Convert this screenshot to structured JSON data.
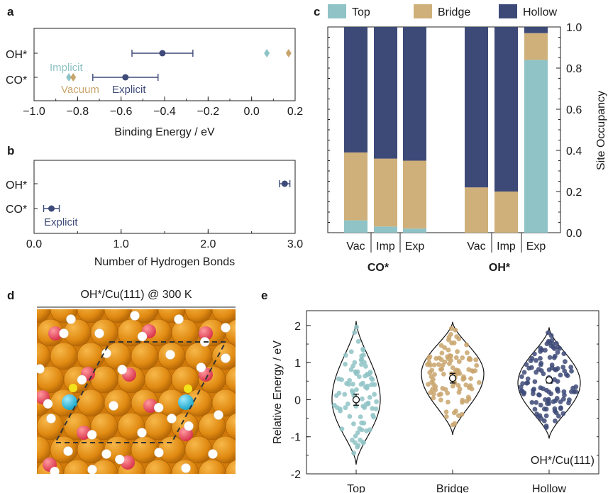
{
  "colors": {
    "implicit": "#8fc3c6",
    "vacuum": "#c9a56c",
    "explicit": "#3e4a78",
    "top": "#8fc3c6",
    "bridge": "#cfb07a",
    "hollow": "#3d4a78",
    "copper": "#e08a12",
    "oxygen": "#e0505a",
    "hydrogen": "#ffffff",
    "carbon_co": "#2bb8d8",
    "marker": "#f4e21a"
  },
  "chart_data": [
    {
      "panel": "a",
      "type": "scatter",
      "xlabel": "Binding Energy / eV",
      "xlim": [
        -1.0,
        0.2
      ],
      "xticks": [
        -1.0,
        -0.8,
        -0.6,
        -0.4,
        -0.2,
        0.0,
        0.2
      ],
      "xticklabels": [
        "−1.0",
        "−0.8",
        "−0.6",
        "−0.4",
        "−0.2",
        "0.0",
        "0.2"
      ],
      "categories": [
        "OH*",
        "CO*"
      ],
      "series": [
        {
          "name": "Explicit",
          "marker": "circle",
          "values": [
            -0.41,
            -0.58
          ],
          "err": [
            0.14,
            0.15
          ]
        },
        {
          "name": "Implicit",
          "marker": "diamond",
          "values": [
            0.07,
            -0.84
          ]
        },
        {
          "name": "Vacuum",
          "marker": "diamond",
          "values": [
            0.17,
            -0.82
          ]
        }
      ]
    },
    {
      "panel": "b",
      "type": "scatter",
      "xlabel": "Number of Hydrogen Bonds",
      "xlim": [
        0.0,
        3.0
      ],
      "xticks": [
        0.0,
        1.0,
        2.0,
        3.0
      ],
      "xticklabels": [
        "0.0",
        "1.0",
        "2.0",
        "3.0"
      ],
      "categories": [
        "OH*",
        "CO*"
      ],
      "series": [
        {
          "name": "Explicit",
          "marker": "circle",
          "values": [
            2.88,
            0.2
          ],
          "err": [
            0.06,
            0.09
          ]
        }
      ]
    },
    {
      "panel": "c",
      "type": "bar",
      "stacked": true,
      "ylabel": "Site Occupancy",
      "ylim": [
        0.0,
        1.0
      ],
      "yticks": [
        0.0,
        0.2,
        0.4,
        0.6,
        0.8,
        1.0
      ],
      "yticklabels": [
        "0.0",
        "0.2",
        "0.4",
        "0.6",
        "0.8",
        "1.0"
      ],
      "legend": [
        "Top",
        "Bridge",
        "Hollow"
      ],
      "legend_position": "top",
      "groups": [
        {
          "label": "CO*",
          "categories": [
            "Vac",
            "Imp",
            "Exp"
          ]
        },
        {
          "label": "OH*",
          "categories": [
            "Vac",
            "Imp",
            "Exp"
          ]
        }
      ],
      "series": [
        {
          "name": "Top",
          "values": [
            0.06,
            0.03,
            0.02,
            0.0,
            0.0,
            0.84
          ]
        },
        {
          "name": "Bridge",
          "values": [
            0.33,
            0.33,
            0.33,
            0.22,
            0.2,
            0.13
          ]
        },
        {
          "name": "Hollow",
          "values": [
            0.61,
            0.64,
            0.65,
            0.78,
            0.8,
            0.03
          ]
        }
      ]
    },
    {
      "panel": "e",
      "type": "violin",
      "ylabel": "Relative Energy / eV",
      "ylim": [
        -2,
        2.4
      ],
      "yticks": [
        -2,
        -1,
        0,
        1,
        2
      ],
      "yticklabels": [
        "-2",
        "-1",
        "0",
        "1",
        "2"
      ],
      "categories": [
        "Top",
        "Bridge",
        "Hollow"
      ],
      "annotation": "OH*/Cu(111)",
      "series": [
        {
          "name": "Top",
          "range": [
            -1.75,
            2.12
          ],
          "mean": 0.0,
          "err": 0.15,
          "peak": 0.0,
          "n_points": 90
        },
        {
          "name": "Bridge",
          "range": [
            -0.95,
            2.1
          ],
          "mean": 0.58,
          "err": 0.13,
          "peak": 0.7,
          "n_points": 110
        },
        {
          "name": "Hollow",
          "range": [
            -1.05,
            1.95
          ],
          "mean": 0.53,
          "err": 0.08,
          "peak": 0.45,
          "n_points": 120
        }
      ]
    }
  ],
  "panels": {
    "a": {
      "letter": "a",
      "y_labels": [
        "OH*",
        "CO*"
      ],
      "annotations": [
        "Implicit",
        "Vacuum",
        "Explicit"
      ]
    },
    "b": {
      "letter": "b",
      "y_labels": [
        "OH*",
        "CO*"
      ],
      "annotations": [
        "Explicit"
      ]
    },
    "c": {
      "letter": "c",
      "group_labels": [
        "CO*",
        "OH*"
      ]
    },
    "d": {
      "letter": "d",
      "title": "OH*/Cu(111) @ 300 K"
    },
    "e": {
      "letter": "e"
    }
  }
}
